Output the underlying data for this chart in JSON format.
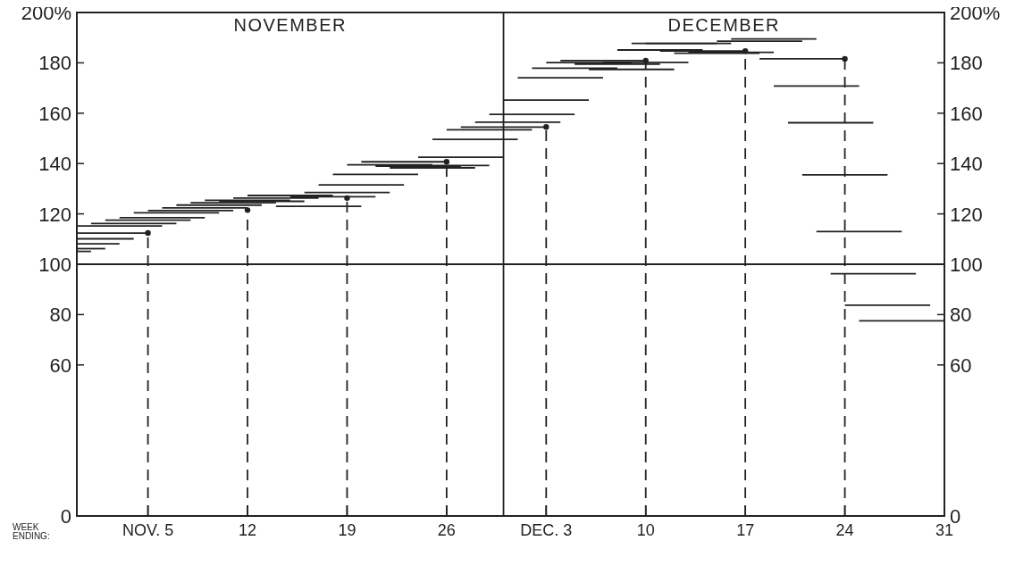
{
  "chart_data": {
    "type": "line",
    "xlabel": "WEEK ENDING:",
    "annotations": [
      "NOVEMBER",
      "DECEMBER"
    ],
    "xlim": [
      "--10-31",
      "--12-31"
    ],
    "xticks": [
      {
        "value": "--11-05",
        "label": "NOV. 5"
      },
      {
        "value": "--11-12",
        "label": "12"
      },
      {
        "value": "--11-19",
        "label": "19"
      },
      {
        "value": "--11-26",
        "label": "26"
      },
      {
        "value": "--12-03",
        "label": "DEC. 3"
      },
      {
        "value": "--12-10",
        "label": "10"
      },
      {
        "value": "--12-17",
        "label": "17"
      },
      {
        "value": "--12-24",
        "label": "24"
      },
      {
        "value": "--12-31",
        "label": "31"
      }
    ],
    "ylim": [
      0,
      200
    ],
    "yticks": [
      0,
      60,
      80,
      100,
      120,
      140,
      160,
      180,
      {
        "value": 200,
        "label": "200%"
      }
    ],
    "y2lim": [
      0,
      200
    ],
    "y2ticks": [
      0,
      60,
      80,
      100,
      120,
      140,
      160,
      180,
      {
        "value": 200,
        "label": "200%"
      }
    ],
    "marker": "none",
    "series": [
      {
        "color": "#222222",
        "x": [
          "--10-31",
          "--11-01"
        ],
        "values": [
          105.1,
          105.1
        ]
      },
      {
        "color": "#222222",
        "x": [
          "--10-31",
          "--11-02"
        ],
        "values": [
          106.2,
          106.2
        ]
      },
      {
        "color": "#222222",
        "x": [
          "--10-31",
          "--11-03"
        ],
        "values": [
          108.1,
          108.1
        ]
      },
      {
        "color": "#222222",
        "x": [
          "--10-31",
          "--11-04"
        ],
        "values": [
          110.1,
          110.1
        ]
      },
      {
        "color": "#222222",
        "x": [
          "--10-31",
          "--11-05"
        ],
        "values": [
          112.4,
          112.4
        ]
      },
      {
        "color": "#222222",
        "x": [
          "--10-31",
          "--11-06"
        ],
        "values": [
          115.2,
          115.2
        ]
      },
      {
        "color": "#222222",
        "x": [
          "--11-01",
          "--11-07"
        ],
        "values": [
          116.2,
          116.2
        ]
      },
      {
        "color": "#222222",
        "x": [
          "--11-02",
          "--11-08"
        ],
        "values": [
          117.5,
          117.5
        ]
      },
      {
        "color": "#222222",
        "x": [
          "--11-03",
          "--11-09"
        ],
        "values": [
          118.5,
          118.5
        ]
      },
      {
        "color": "#222222",
        "x": [
          "--11-04",
          "--11-10"
        ],
        "values": [
          120.4,
          120.4
        ]
      },
      {
        "color": "#222222",
        "x": [
          "--11-05",
          "--11-11"
        ],
        "values": [
          121.3,
          121.3
        ]
      },
      {
        "color": "#222222",
        "x": [
          "--11-06",
          "--11-12"
        ],
        "values": [
          122.4,
          122.4
        ]
      },
      {
        "color": "#222222",
        "x": [
          "--11-07",
          "--11-13"
        ],
        "values": [
          123.5,
          123.5
        ]
      },
      {
        "color": "#222222",
        "x": [
          "--11-08",
          "--11-14"
        ],
        "values": [
          124.4,
          124.4
        ]
      },
      {
        "color": "#222222",
        "x": [
          "--11-09",
          "--11-15"
        ],
        "values": [
          125.4,
          125.4
        ]
      },
      {
        "color": "#222222",
        "x": [
          "--11-10",
          "--11-16"
        ],
        "values": [
          125.0,
          125.0
        ]
      },
      {
        "color": "#222222",
        "x": [
          "--11-11",
          "--11-17"
        ],
        "values": [
          126.3,
          126.3
        ]
      },
      {
        "color": "#222222",
        "x": [
          "--11-12",
          "--11-18"
        ],
        "values": [
          127.3,
          127.3
        ]
      },
      {
        "color": "#222222",
        "x": [
          "--11-14",
          "--11-20"
        ],
        "values": [
          123.0,
          123.0
        ]
      },
      {
        "color": "#222222",
        "x": [
          "--11-15",
          "--11-21"
        ],
        "values": [
          126.8,
          126.8
        ]
      },
      {
        "color": "#222222",
        "x": [
          "--11-16",
          "--11-22"
        ],
        "values": [
          128.5,
          128.5
        ]
      },
      {
        "color": "#222222",
        "x": [
          "--11-17",
          "--11-23"
        ],
        "values": [
          131.5,
          131.5
        ]
      },
      {
        "color": "#222222",
        "x": [
          "--11-18",
          "--11-24"
        ],
        "values": [
          135.7,
          135.7
        ]
      },
      {
        "color": "#222222",
        "x": [
          "--11-19",
          "--11-25"
        ],
        "values": [
          139.5,
          139.5
        ]
      },
      {
        "color": "#222222",
        "x": [
          "--11-20",
          "--11-26"
        ],
        "values": [
          140.7,
          140.7
        ]
      },
      {
        "color": "#222222",
        "x": [
          "--11-21",
          "--11-27"
        ],
        "values": [
          139.0,
          139.0
        ]
      },
      {
        "color": "#222222",
        "x": [
          "--11-22",
          "--11-28"
        ],
        "values": [
          138.3,
          138.3
        ]
      },
      {
        "color": "#222222",
        "x": [
          "--11-23",
          "--11-29"
        ],
        "values": [
          139.2,
          139.2
        ]
      },
      {
        "color": "#222222",
        "x": [
          "--11-24",
          "--11-30"
        ],
        "values": [
          142.5,
          142.5
        ]
      },
      {
        "color": "#222222",
        "x": [
          "--11-25",
          "--12-01"
        ],
        "values": [
          149.6,
          149.6
        ]
      },
      {
        "color": "#222222",
        "x": [
          "--11-26",
          "--12-02"
        ],
        "values": [
          153.4,
          153.4
        ]
      },
      {
        "color": "#222222",
        "x": [
          "--11-27",
          "--12-03"
        ],
        "values": [
          154.5,
          154.5
        ]
      },
      {
        "color": "#222222",
        "x": [
          "--11-28",
          "--12-04"
        ],
        "values": [
          156.4,
          156.4
        ]
      },
      {
        "color": "#222222",
        "x": [
          "--11-29",
          "--12-05"
        ],
        "values": [
          159.5,
          159.5
        ]
      },
      {
        "color": "#222222",
        "x": [
          "--11-30",
          "--12-06"
        ],
        "values": [
          165.2,
          165.2
        ]
      },
      {
        "color": "#222222",
        "x": [
          "--12-01",
          "--12-07"
        ],
        "values": [
          174.1,
          174.1
        ]
      },
      {
        "color": "#222222",
        "x": [
          "--12-02",
          "--12-08"
        ],
        "values": [
          177.9,
          177.9
        ]
      },
      {
        "color": "#222222",
        "x": [
          "--12-03",
          "--12-09"
        ],
        "values": [
          180.1,
          180.1
        ]
      },
      {
        "color": "#222222",
        "x": [
          "--12-04",
          "--12-10"
        ],
        "values": [
          180.9,
          180.9
        ]
      },
      {
        "color": "#222222",
        "x": [
          "--12-05",
          "--12-11"
        ],
        "values": [
          179.5,
          179.5
        ]
      },
      {
        "color": "#222222",
        "x": [
          "--12-06",
          "--12-12"
        ],
        "values": [
          177.4,
          177.4
        ]
      },
      {
        "color": "#222222",
        "x": [
          "--12-07",
          "--12-13"
        ],
        "values": [
          180.2,
          180.2
        ]
      },
      {
        "color": "#222222",
        "x": [
          "--12-08",
          "--12-14"
        ],
        "values": [
          185.1,
          185.1
        ]
      },
      {
        "color": "#222222",
        "x": [
          "--12-09",
          "--12-15"
        ],
        "values": [
          187.7,
          187.7
        ]
      },
      {
        "color": "#222222",
        "x": [
          "--12-10",
          "--12-16"
        ],
        "values": [
          187.7,
          187.7
        ]
      },
      {
        "color": "#222222",
        "x": [
          "--12-11",
          "--12-17"
        ],
        "values": [
          184.7,
          184.7
        ]
      },
      {
        "color": "#222222",
        "x": [
          "--12-12",
          "--12-18"
        ],
        "values": [
          183.8,
          183.8
        ]
      },
      {
        "color": "#222222",
        "x": [
          "--12-13",
          "--12-19"
        ],
        "values": [
          184.2,
          184.2
        ]
      },
      {
        "color": "#222222",
        "x": [
          "--12-15",
          "--12-21"
        ],
        "values": [
          188.6,
          188.6
        ]
      },
      {
        "color": "#222222",
        "x": [
          "--12-16",
          "--12-22"
        ],
        "values": [
          189.5,
          189.5
        ]
      },
      {
        "color": "#222222",
        "x": [
          "--12-18",
          "--12-24"
        ],
        "values": [
          181.6,
          181.6
        ]
      },
      {
        "color": "#222222",
        "x": [
          "--12-19",
          "--12-25"
        ],
        "values": [
          170.8,
          170.8
        ]
      },
      {
        "color": "#222222",
        "x": [
          "--12-20",
          "--12-26"
        ],
        "values": [
          156.2,
          156.2
        ]
      },
      {
        "color": "#222222",
        "x": [
          "--12-21",
          "--12-27"
        ],
        "values": [
          135.5,
          135.5
        ]
      },
      {
        "color": "#222222",
        "x": [
          "--12-22",
          "--12-28"
        ],
        "values": [
          113.0,
          113.0
        ]
      },
      {
        "color": "#222222",
        "x": [
          "--12-23",
          "--12-29"
        ],
        "values": [
          96.2,
          96.2
        ]
      },
      {
        "color": "#222222",
        "x": [
          "--12-24",
          "--12-30"
        ],
        "values": [
          83.7,
          83.7
        ]
      },
      {
        "color": "#222222",
        "x": [
          "--12-25",
          "--12-31"
        ],
        "values": [
          77.5,
          77.5
        ]
      },
      {
        "type": "lollipop",
        "color": "#222222",
        "line_style": "dashed",
        "marker": "circle",
        "x": [
          "--11-05",
          "--11-12",
          "--11-19",
          "--11-26",
          "--12-03",
          "--12-10",
          "--12-17",
          "--12-24"
        ],
        "values": [
          112.4,
          121.5,
          126.3,
          140.7,
          154.5,
          180.9,
          184.7,
          181.6
        ]
      }
    ],
    "ref_lines": [
      {
        "axis": "y",
        "value": 100
      },
      {
        "axis": "x",
        "value": "--11-30"
      }
    ]
  }
}
